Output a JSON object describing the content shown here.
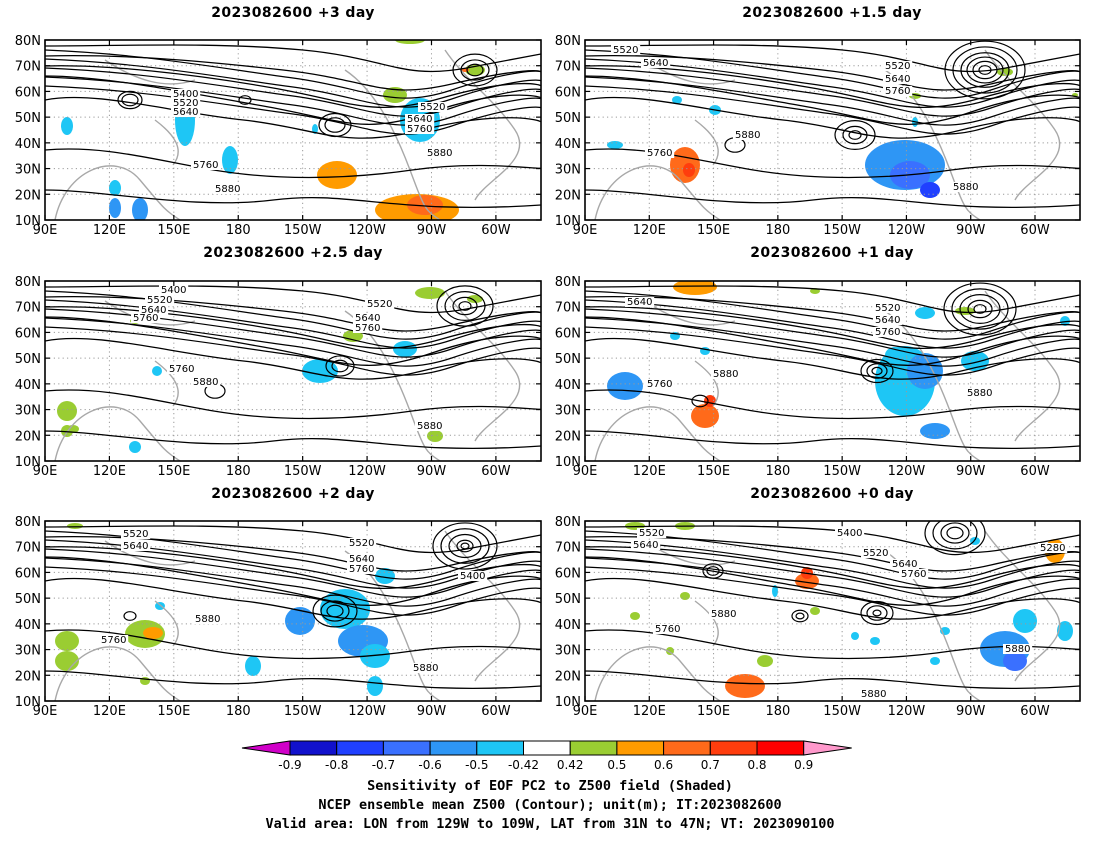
{
  "panels": [
    {
      "title": "2023082600 +3 day"
    },
    {
      "title": "2023082600 +1.5 day"
    },
    {
      "title": "2023082600 +2.5 day"
    },
    {
      "title": "2023082600 +1 day"
    },
    {
      "title": "2023082600 +2 day"
    },
    {
      "title": "2023082600 +0 day"
    }
  ],
  "axes": {
    "lon_ticks": [
      "90E",
      "120E",
      "150E",
      "180",
      "150W",
      "120W",
      "90W",
      "60W"
    ],
    "lat_ticks": [
      "10N",
      "20N",
      "30N",
      "40N",
      "50N",
      "60N",
      "70N",
      "80N"
    ]
  },
  "contour_labels": [
    "5400",
    "5520",
    "5640",
    "5760",
    "5880",
    "5280"
  ],
  "colorbar": {
    "labels": [
      "-0.9",
      "-0.8",
      "-0.7",
      "-0.6",
      "-0.5",
      "-0.42",
      "0.42",
      "0.5",
      "0.6",
      "0.7",
      "0.8",
      "0.9"
    ],
    "colors": [
      "#1111cc",
      "#2040ff",
      "#3a70ff",
      "#2e96f5",
      "#1ec6f5",
      "#ffffff",
      "#9acd32",
      "#ff9b00",
      "#ff6a1a",
      "#ff3d0d",
      "#ff0000"
    ],
    "low_end_color": "#d000c8",
    "high_end_color": "#ff99cc"
  },
  "footer": {
    "line1": "Sensitivity of EOF PC2 to Z500 field (Shaded)",
    "line2": "NCEP ensemble mean Z500 (Contour); unit(m); IT:2023082600",
    "line3": "Valid area: LON from 129W to 109W, LAT from 31N to 47N; VT: 2023090100"
  }
}
